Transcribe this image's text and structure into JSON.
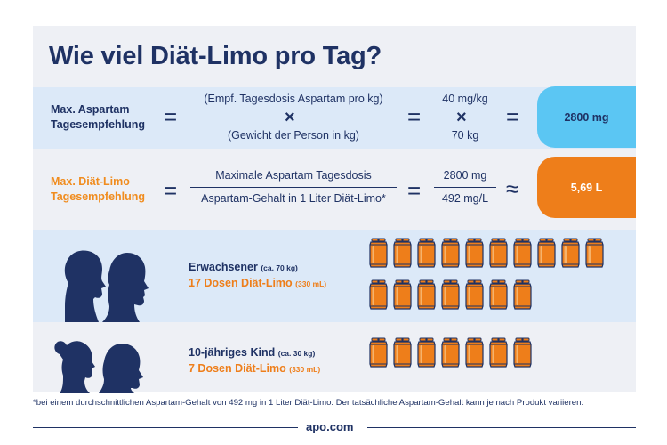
{
  "title": "Wie viel Diät-Limo pro Tag?",
  "row1": {
    "label_line1": "Max. Aspartam",
    "label_line2": "Tagesempfehlung",
    "eq1": "=",
    "top_text": "(Empf. Tagesdosis Aspartam pro kg)",
    "times": "×",
    "bottom_text": "(Gewicht der Person in kg)",
    "eq2": "=",
    "value_top": "40 mg/kg",
    "value_times": "×",
    "value_bottom": "70 kg",
    "eq3": "=",
    "result": "2800 mg"
  },
  "row2": {
    "label_line1": "Max. Diät-Limo",
    "label_line2": "Tagesempfehlung",
    "eq1": "=",
    "numerator": "Maximale Aspartam Tagesdosis",
    "denominator": "Aspartam-Gehalt in 1 Liter Diät-Limo*",
    "eq2": "=",
    "value_numerator": "2800 mg",
    "value_denominator": "492 mg/L",
    "approx": "≈",
    "result": "5,69 L"
  },
  "adult": {
    "name": "Erwachsener",
    "weight": "(ca. 70 kg)",
    "cans_text": "17 Dosen Diät-Limo",
    "volume": "(330 mL)",
    "can_count": 17
  },
  "child": {
    "name": "10-jähriges Kind",
    "weight": "(ca. 30 kg)",
    "cans_text": "7 Dosen Diät-Limo",
    "volume": "(330 mL)",
    "can_count": 7
  },
  "footnote": "*bei einem durchschnittlichen Aspartam-Gehalt von 492 mg in 1 Liter Diät-Limo. Der tatsächliche Aspartam-Gehalt kann je nach Produkt variieren.",
  "logo": "apo.com",
  "colors": {
    "navy": "#1f3264",
    "orange": "#ee7e1a",
    "light_blue": "#5bc6f3",
    "band_blue": "#dce9f8",
    "band_grey": "#eef0f5"
  }
}
